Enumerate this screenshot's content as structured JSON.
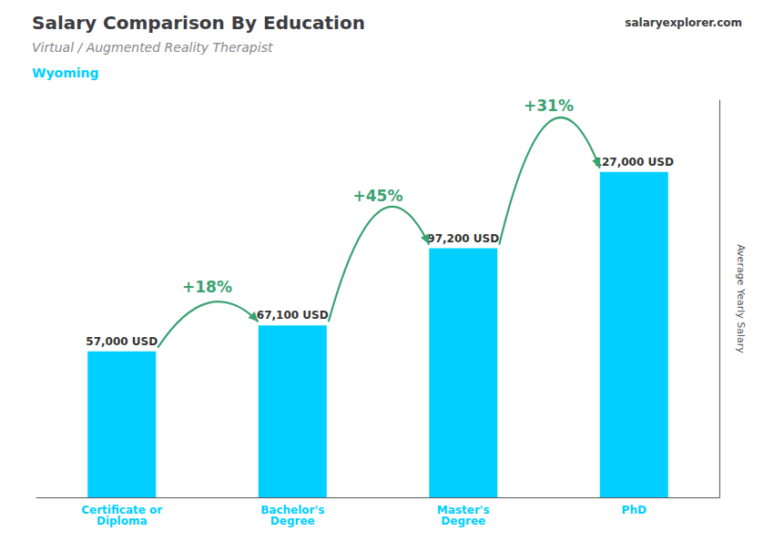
{
  "chart_data": {
    "type": "bar",
    "title": "Salary Comparison By Education",
    "subtitle": "Virtual / Augmented Reality Therapist",
    "location": "Wyoming",
    "brand": "salaryexplorer.com",
    "ylabel": "Average Yearly Salary",
    "categories": [
      "Certificate or\nDiploma",
      "Bachelor's\nDegree",
      "Master's\nDegree",
      "PhD"
    ],
    "values": [
      57000,
      67100,
      97200,
      127000
    ],
    "value_labels": [
      "57,000 USD",
      "67,100 USD",
      "97,200 USD",
      "127,000 USD"
    ],
    "data_labels": true,
    "annotations": [
      "+18%",
      "+45%",
      "+31%"
    ],
    "color": "#00CFFF",
    "ylim": [
      0,
      155000
    ],
    "tick_labels": "x",
    "grid": false
  }
}
